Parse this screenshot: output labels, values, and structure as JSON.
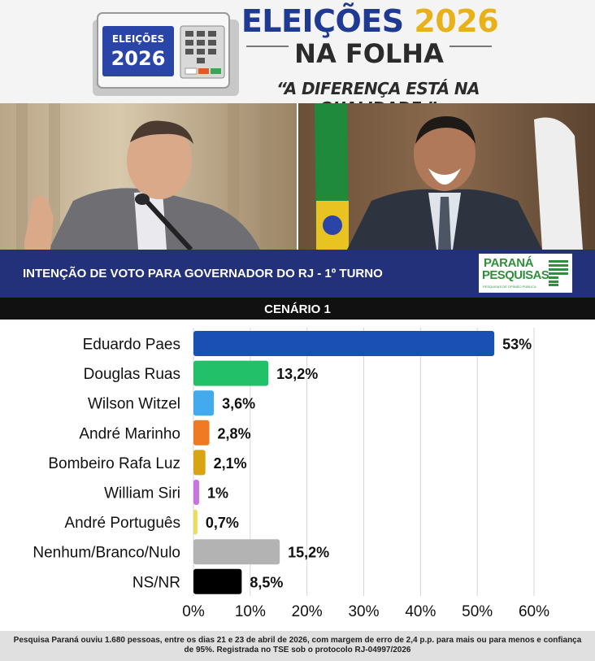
{
  "header": {
    "urn_label_top": "ELEIÇÕES",
    "urn_label_year": "2026",
    "title_main": "ELEIÇÕES",
    "title_year": "2026",
    "title_sub": "NA FOLHA",
    "slogan": "“A DIFERENÇA ESTÁ NA QUALIDADE.”"
  },
  "banner": {
    "title": "INTENÇÃO DE VOTO PARA GOVERNADOR DO RJ - 1º TURNO",
    "logo_line1": "PARANÁ",
    "logo_line2": "PESQUISAS",
    "logo_sub": "PESQUISAS DE OPINIÃO PÚBLICA"
  },
  "scenario": "CENÁRIO 1",
  "colors": {
    "brand_blue": "#23307a",
    "title_blue": "#1f3a93",
    "title_gold": "#e8b019",
    "logo_green": "#2f8f3a"
  },
  "chart_data": {
    "type": "bar",
    "orientation": "horizontal",
    "categories": [
      "Eduardo Paes",
      "Douglas Ruas",
      "Wilson Witzel",
      "André Marinho",
      "Bombeiro Rafa Luz",
      "William Siri",
      "André Português",
      "Nenhum/Branco/Nulo",
      "NS/NR"
    ],
    "values": [
      53,
      13.2,
      3.6,
      2.8,
      2.1,
      1,
      0.7,
      15.2,
      8.5
    ],
    "value_labels": [
      "53%",
      "13,2%",
      "3,6%",
      "2,8%",
      "2,1%",
      "1%",
      "0,7%",
      "15,2%",
      "8,5%"
    ],
    "colors": [
      "#1a4fb3",
      "#22c069",
      "#44aaee",
      "#f07a24",
      "#d9a412",
      "#c776e0",
      "#ecdc58",
      "#b3b3b3",
      "#000000"
    ],
    "xlim": [
      0,
      60
    ],
    "x_ticks": [
      0,
      10,
      20,
      30,
      40,
      50,
      60
    ],
    "x_tick_labels": [
      "0%",
      "10%",
      "20%",
      "30%",
      "40%",
      "50%",
      "60%"
    ],
    "grid": true
  },
  "footer": {
    "text": "Pesquisa Paraná ouviu 1.680 pessoas, entre os dias 21 e 23 de abril de 2026, com margem de erro de 2,4 p.p. para mais ou para menos e confiança de 95%. Registrada no TSE sob o protocolo RJ-04997/2026"
  }
}
